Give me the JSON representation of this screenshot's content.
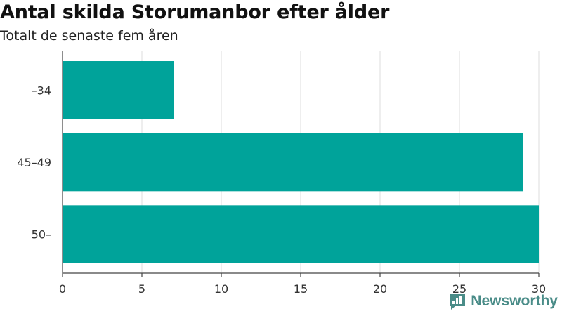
{
  "chart_data": {
    "type": "bar",
    "orientation": "horizontal",
    "title": "Antal skilda Storumanbor efter ålder",
    "subtitle": "Totalt de senaste fem åren",
    "categories": [
      "–34",
      "45–49",
      "50–"
    ],
    "values": [
      7,
      29,
      30
    ],
    "xlim": [
      0,
      30
    ],
    "xticks": [
      0,
      5,
      10,
      15,
      20,
      25,
      30
    ],
    "xlabel": "",
    "ylabel": "",
    "grid": true,
    "bar_color": "#00a39a",
    "grid_color": "#dddddd"
  },
  "brand": {
    "name": "Newsworthy",
    "color": "#4a8c88",
    "icon": "newsworthy-logo-icon"
  }
}
